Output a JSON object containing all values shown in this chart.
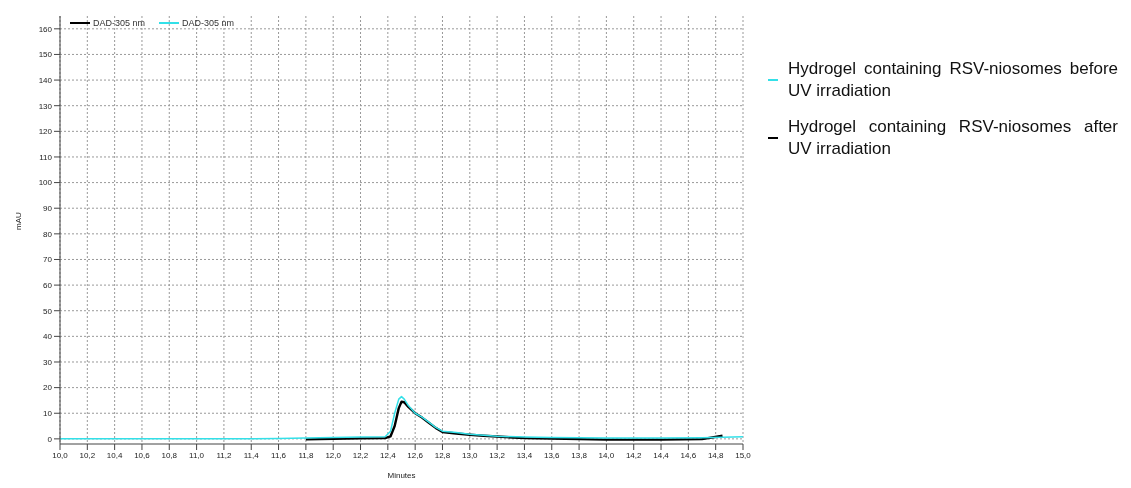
{
  "chart_data": {
    "type": "line",
    "xlabel": "Minutes",
    "ylabel": "mAU",
    "xlim": [
      10,
      15
    ],
    "ylim": [
      -2,
      165
    ],
    "xticks": [
      {
        "value": 10,
        "label": "10,0"
      },
      {
        "value": 10.2,
        "label": "10,2"
      },
      {
        "value": 10.4,
        "label": "10,4"
      },
      {
        "value": 10.6,
        "label": "10,6"
      },
      {
        "value": 10.8,
        "label": "10,8"
      },
      {
        "value": 11,
        "label": "11,0"
      },
      {
        "value": 11.2,
        "label": "11,2"
      },
      {
        "value": 11.4,
        "label": "11,4"
      },
      {
        "value": 11.6,
        "label": "11,6"
      },
      {
        "value": 11.8,
        "label": "11,8"
      },
      {
        "value": 12,
        "label": "12,0"
      },
      {
        "value": 12.2,
        "label": "12,2"
      },
      {
        "value": 12.4,
        "label": "12,4"
      },
      {
        "value": 12.6,
        "label": "12,6"
      },
      {
        "value": 12.8,
        "label": "12,8"
      },
      {
        "value": 13,
        "label": "13,0"
      },
      {
        "value": 13.2,
        "label": "13,2"
      },
      {
        "value": 13.4,
        "label": "13,4"
      },
      {
        "value": 13.6,
        "label": "13,6"
      },
      {
        "value": 13.8,
        "label": "13,8"
      },
      {
        "value": 14,
        "label": "14,0"
      },
      {
        "value": 14.2,
        "label": "14,2"
      },
      {
        "value": 14.4,
        "label": "14,4"
      },
      {
        "value": 14.6,
        "label": "14,6"
      },
      {
        "value": 14.8,
        "label": "14,8"
      },
      {
        "value": 15,
        "label": "15,0"
      }
    ],
    "yticks": [
      0,
      10,
      20,
      30,
      40,
      50,
      60,
      70,
      80,
      90,
      100,
      110,
      120,
      130,
      140,
      150,
      160
    ],
    "grid": true,
    "legend": "right",
    "marker": "none",
    "line_style": "solid",
    "annotations": [
      "DAD-305 nm",
      "DAD-305 nm"
    ],
    "x": [
      10,
      10.5,
      11,
      11.4,
      11.6,
      11.8,
      12,
      12.2,
      12.38,
      12.42,
      12.45,
      12.48,
      12.5,
      12.52,
      12.55,
      12.6,
      12.65,
      12.7,
      12.75,
      12.8,
      12.9,
      13,
      13.1,
      13.2,
      13.4,
      13.6,
      14,
      14.4,
      14.7,
      14.85,
      15
    ],
    "series": [
      {
        "name": "Hydrogel containing RSV-niosomes before UV irradiation",
        "color": "#33e0e8",
        "values": [
          0,
          0,
          0,
          0,
          0.1,
          0.3,
          0.5,
          0.7,
          0.8,
          3,
          10,
          15.5,
          16.5,
          15.5,
          13,
          10,
          8.5,
          6.5,
          4.5,
          3,
          2.5,
          1.8,
          1.4,
          1,
          0.7,
          0.5,
          0.3,
          0.3,
          0.4,
          0.6,
          0.8
        ]
      },
      {
        "name": "Hydrogel containing RSV-niosomes after UV irradiation",
        "color": "#000000",
        "values": [
          null,
          null,
          null,
          null,
          null,
          -0.2,
          0,
          0.2,
          0.3,
          1,
          5,
          12,
          14.5,
          14.3,
          12.5,
          10,
          8.3,
          6.3,
          4.3,
          2.7,
          2.1,
          1.6,
          1.2,
          0.9,
          0.3,
          0.1,
          -0.3,
          -0.3,
          -0.1,
          1.2,
          null
        ]
      }
    ]
  }
}
